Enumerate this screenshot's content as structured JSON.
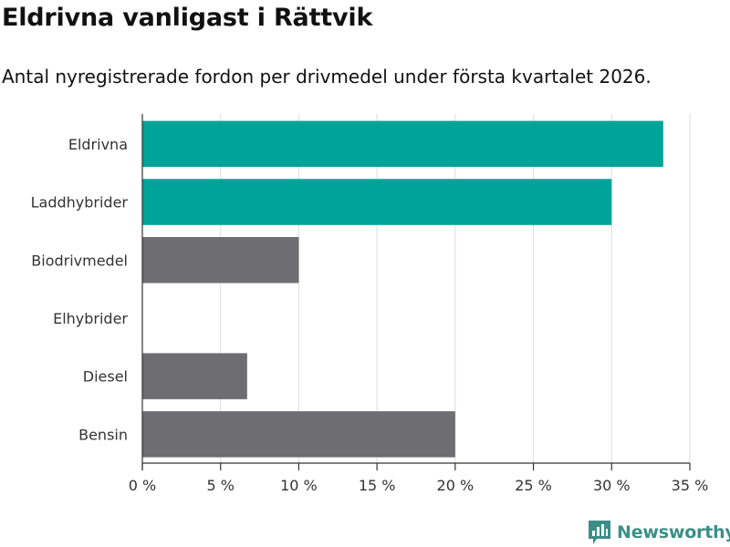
{
  "title": "Eldrivna vanligast i Rättvik",
  "subtitle": "Antal nyregistrerade fordon per drivmedel under första kvartalet 2026.",
  "brand": "Newsworthy",
  "colors": {
    "highlight": "#00a398",
    "default": "#6e6d72",
    "grid": "#dddddd",
    "axis": "#333333",
    "brand": "#3b8f88"
  },
  "chart_data": {
    "type": "bar",
    "orientation": "horizontal",
    "categories": [
      "Eldrivna",
      "Laddhybrider",
      "Biodrivmedel",
      "Elhybrider",
      "Diesel",
      "Bensin"
    ],
    "values": [
      33.3,
      30.0,
      10.0,
      0,
      6.7,
      20.0
    ],
    "highlight": [
      true,
      true,
      false,
      false,
      false,
      false
    ],
    "xlim": [
      0,
      35
    ],
    "xticks": [
      0,
      5,
      10,
      15,
      20,
      25,
      30,
      35
    ],
    "xtick_labels": [
      "0 %",
      "5 %",
      "10 %",
      "15 %",
      "20 %",
      "25 %",
      "30 %",
      "35 %"
    ],
    "unit": "%",
    "grid": true,
    "xlabel": "",
    "ylabel": ""
  }
}
